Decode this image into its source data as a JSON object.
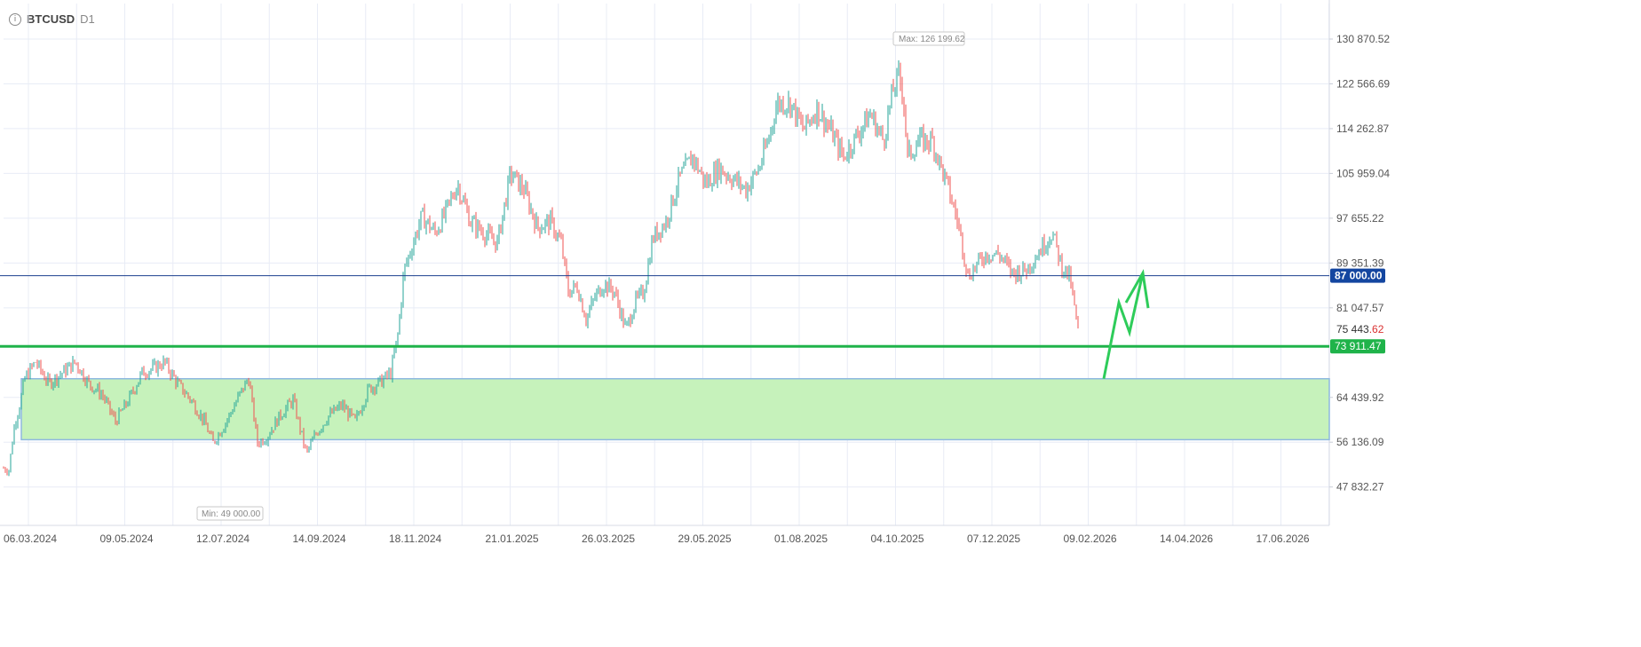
{
  "header": {
    "symbol": "BTCUSD",
    "timeframe": "D1",
    "info_icon": "info-icon"
  },
  "colors": {
    "up": "#26a69a",
    "down": "#ef5350",
    "grid": "#e8ecf6",
    "axis_text": "#555555",
    "zone_fill": "#c6f2bb",
    "zone_border": "#8fb8e0",
    "support_line": "#1fb34a",
    "level_line": "#1b3f8f",
    "level_badge": "#1446a0",
    "arrow": "#2ecc5a"
  },
  "chart_data": {
    "type": "candlestick",
    "instrument": "BTCUSD",
    "timeframe": "D1",
    "ylim": [
      44000,
      133500
    ],
    "y_ticks": [
      "130 870.52",
      "122 566.69",
      "114 262.87",
      "105 959.04",
      "97 655.22",
      "89 351.39",
      "81 047.57",
      "64 439.92",
      "56 136.09",
      "47 832.27"
    ],
    "x_ticks": [
      "06.03.2024",
      "09.05.2024",
      "12.07.2024",
      "14.09.2024",
      "18.11.2024",
      "21.01.2025",
      "26.03.2025",
      "29.05.2025",
      "01.08.2025",
      "04.10.2025",
      "07.12.2025",
      "09.02.2026",
      "14.04.2026",
      "17.06.2026"
    ],
    "price_path": [
      [
        0,
        51500
      ],
      [
        10,
        51000
      ],
      [
        16,
        59000
      ],
      [
        22,
        63000
      ],
      [
        28,
        68000
      ],
      [
        40,
        71000
      ],
      [
        55,
        67000
      ],
      [
        70,
        69000
      ],
      [
        85,
        71000
      ],
      [
        100,
        67000
      ],
      [
        115,
        65000
      ],
      [
        130,
        60000
      ],
      [
        145,
        64000
      ],
      [
        160,
        69000
      ],
      [
        175,
        70000
      ],
      [
        185,
        71000
      ],
      [
        200,
        67000
      ],
      [
        215,
        64000
      ],
      [
        230,
        60000
      ],
      [
        240,
        56000
      ],
      [
        255,
        60000
      ],
      [
        270,
        65000
      ],
      [
        280,
        68000
      ],
      [
        290,
        56000
      ],
      [
        300,
        57000
      ],
      [
        315,
        61000
      ],
      [
        330,
        64000
      ],
      [
        345,
        54000
      ],
      [
        355,
        57500
      ],
      [
        370,
        61000
      ],
      [
        385,
        63000
      ],
      [
        400,
        60000
      ],
      [
        415,
        66000
      ],
      [
        430,
        67500
      ],
      [
        440,
        69000
      ],
      [
        448,
        76000
      ],
      [
        455,
        88000
      ],
      [
        465,
        93000
      ],
      [
        475,
        98000
      ],
      [
        490,
        95000
      ],
      [
        500,
        98000
      ],
      [
        515,
        104000
      ],
      [
        530,
        97000
      ],
      [
        545,
        95000
      ],
      [
        560,
        93000
      ],
      [
        575,
        106000
      ],
      [
        590,
        103000
      ],
      [
        605,
        96000
      ],
      [
        620,
        97000
      ],
      [
        632,
        93000
      ],
      [
        640,
        84000
      ],
      [
        650,
        85000
      ],
      [
        660,
        79000
      ],
      [
        670,
        83000
      ],
      [
        680,
        85500
      ],
      [
        692,
        84000
      ],
      [
        705,
        77000
      ],
      [
        715,
        82000
      ],
      [
        725,
        84000
      ],
      [
        735,
        94000
      ],
      [
        750,
        97000
      ],
      [
        765,
        105000
      ],
      [
        780,
        109000
      ],
      [
        795,
        104000
      ],
      [
        810,
        107000
      ],
      [
        825,
        105000
      ],
      [
        840,
        103000
      ],
      [
        855,
        107000
      ],
      [
        865,
        112000
      ],
      [
        875,
        119000
      ],
      [
        890,
        119000
      ],
      [
        905,
        114000
      ],
      [
        920,
        118000
      ],
      [
        935,
        114000
      ],
      [
        950,
        109000
      ],
      [
        965,
        113000
      ],
      [
        980,
        117000
      ],
      [
        995,
        112000
      ],
      [
        1005,
        121000
      ],
      [
        1012,
        124000
      ],
      [
        1017,
        121000
      ],
      [
        1022,
        109000
      ],
      [
        1035,
        112000
      ],
      [
        1050,
        112000
      ],
      [
        1060,
        107000
      ],
      [
        1070,
        102000
      ],
      [
        1080,
        96000
      ],
      [
        1090,
        87000
      ],
      [
        1100,
        89000
      ],
      [
        1110,
        91000
      ],
      [
        1125,
        91000
      ],
      [
        1140,
        87500
      ],
      [
        1155,
        88000
      ],
      [
        1170,
        91500
      ],
      [
        1185,
        95000
      ],
      [
        1195,
        89000
      ],
      [
        1205,
        86500
      ],
      [
        1215,
        75443
      ]
    ],
    "max_label": "Max: 126 199.62",
    "min_label": "Min: 49 000.00",
    "current_price": {
      "main": "75 443",
      "fraction": ".62"
    },
    "support": {
      "value": 73911.47,
      "label": "73 911.47"
    },
    "level": {
      "value": 87000,
      "label": "87 000.00"
    },
    "zone": {
      "from_date": "06.03.2024",
      "to_date": "17.06.2026",
      "low": 56600,
      "high": 67900
    },
    "forecast_arrow": [
      [
        1243,
        67900
      ],
      [
        1260,
        82000
      ],
      [
        1272,
        76500
      ],
      [
        1287,
        87500
      ],
      [
        1268,
        82000
      ],
      [
        1287,
        87500
      ],
      [
        1293,
        81000
      ]
    ]
  }
}
